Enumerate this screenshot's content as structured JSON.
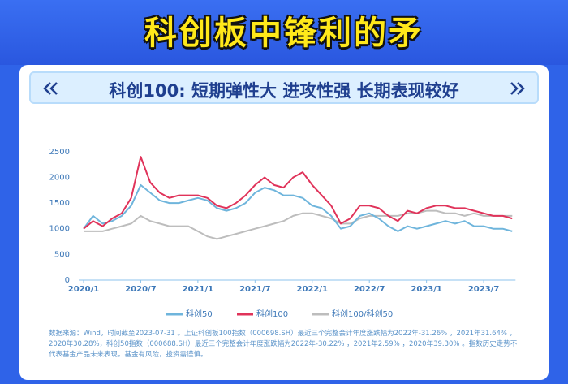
{
  "header": {
    "title": "科创板中锋利的矛",
    "subtitle": "科创100: 短期弹性大 进攻性强 长期表现较好"
  },
  "chart_data": {
    "type": "line",
    "x": [
      "2020/1",
      "2020/2",
      "2020/3",
      "2020/4",
      "2020/5",
      "2020/6",
      "2020/7",
      "2020/8",
      "2020/9",
      "2020/10",
      "2020/11",
      "2020/12",
      "2021/1",
      "2021/2",
      "2021/3",
      "2021/4",
      "2021/5",
      "2021/6",
      "2021/7",
      "2021/8",
      "2021/9",
      "2021/10",
      "2021/11",
      "2021/12",
      "2022/1",
      "2022/2",
      "2022/3",
      "2022/4",
      "2022/5",
      "2022/6",
      "2022/7",
      "2022/8",
      "2022/9",
      "2022/10",
      "2022/11",
      "2022/12",
      "2023/1",
      "2023/2",
      "2023/3",
      "2023/4",
      "2023/5",
      "2023/6",
      "2023/7",
      "2023/8",
      "2023/9",
      "2023/10"
    ],
    "xticks": [
      "2020/1",
      "2020/7",
      "2021/1",
      "2021/7",
      "2022/1",
      "2022/7",
      "2023/1",
      "2023/7"
    ],
    "ylim": [
      0,
      2750
    ],
    "yticks": [
      0,
      500,
      1000,
      1500,
      2000,
      2500
    ],
    "grid": false,
    "series": [
      {
        "name": "科创50",
        "color": "#6fb5dc",
        "values": [
          1000,
          1250,
          1100,
          1150,
          1250,
          1450,
          1850,
          1700,
          1550,
          1500,
          1500,
          1550,
          1600,
          1550,
          1400,
          1350,
          1400,
          1500,
          1700,
          1800,
          1750,
          1650,
          1650,
          1600,
          1450,
          1400,
          1250,
          1000,
          1050,
          1250,
          1300,
          1200,
          1050,
          950,
          1050,
          1000,
          1050,
          1100,
          1150,
          1100,
          1150,
          1050,
          1050,
          1000,
          1000,
          950
        ]
      },
      {
        "name": "科创100",
        "color": "#e0335a",
        "values": [
          1000,
          1150,
          1050,
          1200,
          1300,
          1600,
          2400,
          1900,
          1700,
          1600,
          1650,
          1650,
          1650,
          1600,
          1450,
          1400,
          1500,
          1650,
          1850,
          2000,
          1850,
          1800,
          2000,
          2100,
          1850,
          1650,
          1450,
          1100,
          1200,
          1450,
          1450,
          1400,
          1250,
          1150,
          1350,
          1300,
          1400,
          1450,
          1450,
          1400,
          1400,
          1350,
          1300,
          1250,
          1250,
          1200
        ]
      },
      {
        "name": "科创100/科创50",
        "color": "#bdbdbd",
        "values": [
          950,
          950,
          950,
          1000,
          1050,
          1100,
          1250,
          1150,
          1100,
          1050,
          1050,
          1050,
          950,
          850,
          800,
          850,
          900,
          950,
          1000,
          1050,
          1100,
          1150,
          1250,
          1300,
          1300,
          1250,
          1200,
          1100,
          1100,
          1200,
          1250,
          1250,
          1250,
          1250,
          1300,
          1300,
          1350,
          1350,
          1300,
          1300,
          1250,
          1300,
          1250,
          1250,
          1250,
          1250
        ]
      }
    ]
  },
  "footnote": "数据来源：Wind，时间截至2023-07-31 。上证科创板100指数（000698.SH）最近三个完整会计年度涨跌幅为2022年-31.26% ，2021年31.64% ，2020年30.28%，科创50指数（000688.SH）最近三个完整会计年度涨跌幅为2022年-30.22% ，2021年2.59% ，2020年39.30% 。指数历史走势不代表基金产品未来表现。基金有风险，投资需谨慎。"
}
